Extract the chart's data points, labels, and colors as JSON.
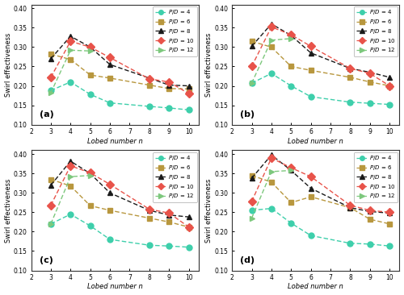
{
  "x": [
    3,
    4,
    5,
    6,
    8,
    9,
    10
  ],
  "panels": [
    {
      "label": "(a)",
      "series": {
        "P4": [
          0.188,
          0.21,
          0.178,
          0.156,
          0.147,
          0.143,
          0.138
        ],
        "P6": [
          0.282,
          0.268,
          0.228,
          0.22,
          0.202,
          0.193,
          0.192
        ],
        "P8": [
          0.27,
          0.328,
          0.3,
          0.255,
          0.22,
          0.202,
          0.2
        ],
        "P10": [
          0.222,
          0.315,
          0.3,
          0.273,
          0.218,
          0.21,
          0.18
        ],
        "P12": [
          0.182,
          0.292,
          0.29,
          null,
          null,
          null,
          null
        ]
      }
    },
    {
      "label": "(b)",
      "series": {
        "P4": [
          0.207,
          0.232,
          0.2,
          0.172,
          0.158,
          0.155,
          0.152
        ],
        "P6": [
          0.315,
          0.3,
          0.25,
          0.24,
          0.222,
          0.21,
          0.2
        ],
        "P8": [
          0.302,
          0.36,
          0.33,
          0.285,
          0.245,
          0.235,
          0.222
        ],
        "P10": [
          0.25,
          0.352,
          0.332,
          0.302,
          0.245,
          0.232,
          0.2
        ],
        "P12": [
          0.207,
          0.318,
          0.322,
          null,
          null,
          null,
          null
        ]
      }
    },
    {
      "label": "(c)",
      "series": {
        "P4": [
          0.22,
          0.245,
          0.215,
          0.18,
          0.165,
          0.163,
          0.16
        ],
        "P6": [
          0.335,
          0.318,
          0.267,
          0.255,
          0.235,
          0.225,
          0.212
        ],
        "P8": [
          0.32,
          0.382,
          0.35,
          0.3,
          0.255,
          0.243,
          0.238
        ],
        "P10": [
          0.268,
          0.37,
          0.352,
          0.322,
          0.258,
          0.248,
          0.212
        ],
        "P12": [
          0.22,
          0.342,
          0.345,
          null,
          null,
          null,
          null
        ]
      }
    },
    {
      "label": "(d)",
      "series": {
        "P4": [
          0.255,
          0.26,
          0.222,
          0.19,
          0.17,
          0.168,
          0.163
        ],
        "P6": [
          0.345,
          0.328,
          0.275,
          0.29,
          0.262,
          0.232,
          0.22
        ],
        "P8": [
          0.338,
          0.398,
          0.358,
          0.312,
          0.262,
          0.252,
          0.248
        ],
        "P10": [
          0.278,
          0.39,
          0.365,
          0.342,
          0.268,
          0.255,
          0.25
        ],
        "P12": [
          0.235,
          0.355,
          0.358,
          null,
          null,
          null,
          null
        ]
      }
    }
  ],
  "colors": {
    "P4": "#3ecfab",
    "P6": "#b8973e",
    "P8": "#1a1a1a",
    "P10": "#e8534a",
    "P12": "#7dc87d"
  },
  "markers": {
    "P4": "o",
    "P6": "s",
    "P8": "^",
    "P10": "D",
    "P12": ">"
  },
  "legend_labels": {
    "P4": "P/D = 4",
    "P6": "P/D = 6",
    "P8": "P/D = 8",
    "P10": "P/D = 10",
    "P12": "P/D = 12"
  },
  "ylim": [
    0.1,
    0.41
  ],
  "yticks": [
    0.1,
    0.15,
    0.2,
    0.25,
    0.3,
    0.35,
    0.4
  ],
  "xlim": [
    2,
    10.5
  ],
  "xticks": [
    2,
    3,
    4,
    5,
    6,
    7,
    8,
    9,
    10
  ],
  "xlabel": "Lobed number n",
  "ylabel": "Swirl effectiveness",
  "background_color": "#ffffff",
  "linewidth": 1.0,
  "markersize": 5
}
